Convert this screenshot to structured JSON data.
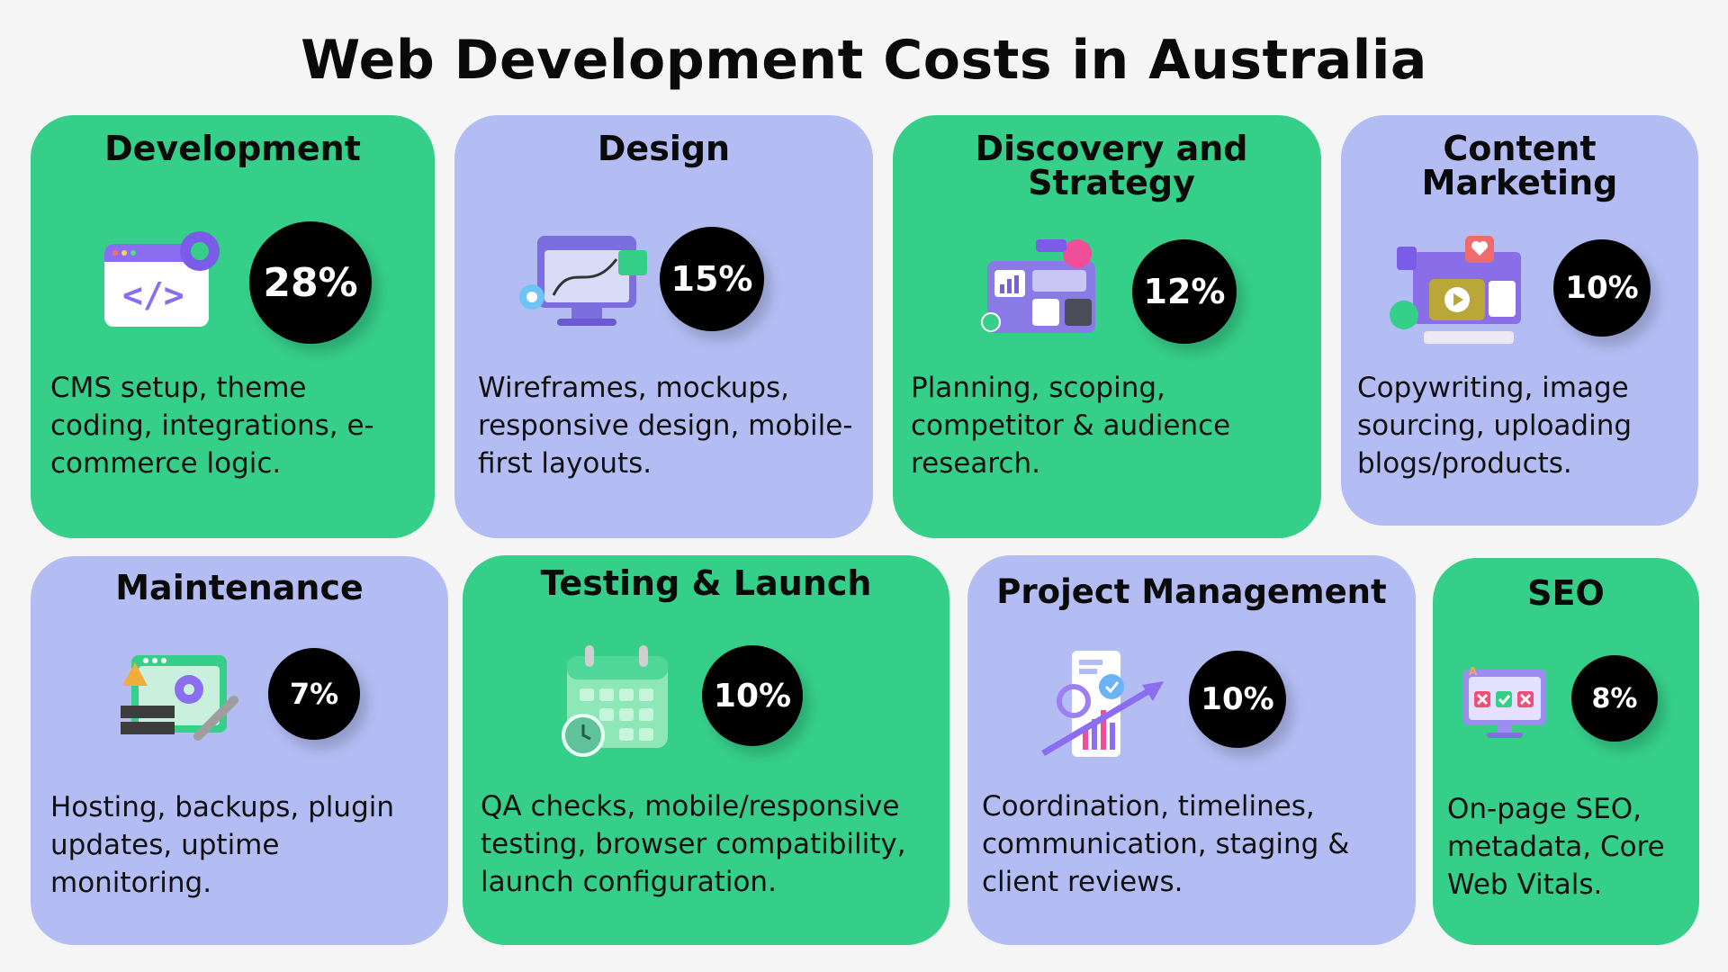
{
  "title": "Web Development Costs in Australia",
  "colors": {
    "green": "#36cf8a",
    "purple": "#b3bdf3",
    "badge": "#000000"
  },
  "cards": [
    {
      "name": "Development",
      "percent": "28%",
      "description": "CMS setup, theme\ncoding, integrations, e-\ncommerce logic.",
      "icon": "code-window-gear-icon"
    },
    {
      "name": "Design",
      "percent": "15%",
      "description": "Wireframes, mockups,\nresponsive design, mobile-\nfirst layouts.",
      "icon": "design-monitor-icon"
    },
    {
      "name": "Discovery and\nStrategy",
      "percent": "12%",
      "description": "Planning, scoping,\ncompetitor & audience\nresearch.",
      "icon": "strategy-dashboard-icon"
    },
    {
      "name": "Content\nMarketing",
      "percent": "10%",
      "description": "Copywriting, image\nsourcing, uploading\nblogs/products.",
      "icon": "content-media-icon"
    },
    {
      "name": "Maintenance",
      "percent": "7%",
      "description": "Hosting, backups, plugin\nupdates, uptime\nmonitoring.",
      "icon": "maintenance-tools-icon"
    },
    {
      "name": "Testing & Launch",
      "percent": "10%",
      "description": "QA checks, mobile/responsive\ntesting, browser compatibility,\nlaunch configuration.",
      "icon": "calendar-clock-icon"
    },
    {
      "name": "Project Management",
      "percent": "10%",
      "description": "Coordination, timelines,\ncommunication, staging &\nclient reviews.",
      "icon": "growth-chart-icon"
    },
    {
      "name": "SEO",
      "percent": "8%",
      "description": "On-page SEO,\nmetadata, Core\nWeb Vitals.",
      "icon": "seo-monitor-icon"
    }
  ]
}
